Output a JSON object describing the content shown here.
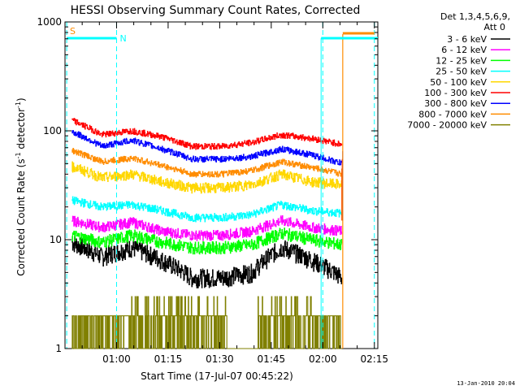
{
  "chart_data": {
    "type": "line",
    "title": "HESSI Observing Summary Count Rates, Corrected",
    "xlabel": "Start Time (17-Jul-07 00:45:22)",
    "ylabel_main": "Corrected Count Rate (s",
    "ylabel_sup1": "-1",
    "ylabel_mid": " detector",
    "ylabel_sup2": "-1",
    "ylabel_end": ")",
    "ylim": [
      1,
      1000
    ],
    "yscale": "log",
    "xlim_minutes": [
      0,
      91
    ],
    "x_ticks": [
      {
        "label": "01:00",
        "min": 15
      },
      {
        "label": "01:15",
        "min": 30
      },
      {
        "label": "01:30",
        "min": 45
      },
      {
        "label": "01:45",
        "min": 60
      },
      {
        "label": "02:00",
        "min": 75
      },
      {
        "label": "02:15",
        "min": 90
      }
    ],
    "y_ticks": [
      {
        "label": "1",
        "v": 1
      },
      {
        "label": "10",
        "v": 10
      },
      {
        "label": "100",
        "v": 100
      },
      {
        "label": "1000",
        "v": 1000
      }
    ],
    "legend_header": [
      "Det 1,3,4,5,6,9,",
      "Att 0"
    ],
    "series": [
      {
        "name": "3 - 6 keV",
        "color": "#000000",
        "v": [
          9.5,
          7,
          8.5,
          6.5,
          4.5,
          4.5,
          5,
          8.5,
          6.5,
          4.5
        ],
        "noise": 0.09
      },
      {
        "name": "6 - 12 keV",
        "color": "#ff00ff",
        "v": [
          15,
          13,
          14.5,
          12,
          11,
          11,
          12,
          15,
          13,
          12
        ],
        "noise": 0.05
      },
      {
        "name": "12 - 25 keV",
        "color": "#00ff00",
        "v": [
          11,
          9.5,
          11,
          9.5,
          8.5,
          8.5,
          9,
          11.5,
          10,
          9
        ],
        "noise": 0.06
      },
      {
        "name": "25 - 50 keV",
        "color": "#00ffff",
        "v": [
          23,
          20,
          21,
          18.5,
          16,
          16,
          17,
          21,
          18.5,
          17.5
        ],
        "noise": 0.04
      },
      {
        "name": "50 - 100 keV",
        "color": "#ffd700",
        "v": [
          47,
          37,
          40,
          34,
          30,
          30,
          32,
          40,
          34,
          32
        ],
        "noise": 0.05
      },
      {
        "name": "100 - 300 keV",
        "color": "#ff0000",
        "v": [
          125,
          92,
          100,
          88,
          72,
          72,
          78,
          92,
          85,
          75
        ],
        "noise": 0.03
      },
      {
        "name": "300 - 800 keV",
        "color": "#0000ff",
        "v": [
          98,
          72,
          82,
          68,
          55,
          55,
          58,
          68,
          60,
          50
        ],
        "noise": 0.03
      },
      {
        "name": "800 - 7000 keV",
        "color": "#ff8c00",
        "v": [
          66,
          52,
          56,
          48,
          40,
          40,
          43,
          52,
          46,
          40
        ],
        "noise": 0.03
      },
      {
        "name": "7000 - 20000 keV",
        "color": "#808000",
        "v": [
          2,
          2,
          2,
          1.5,
          1,
          1,
          2,
          3,
          2,
          1
        ],
        "noise": 0
      }
    ],
    "markers": [
      {
        "label": "S",
        "color": "#ff8c00"
      },
      {
        "label": "N",
        "color": "#00ffff"
      }
    ],
    "date_stamp": "13-Jan-2010 20:04"
  }
}
